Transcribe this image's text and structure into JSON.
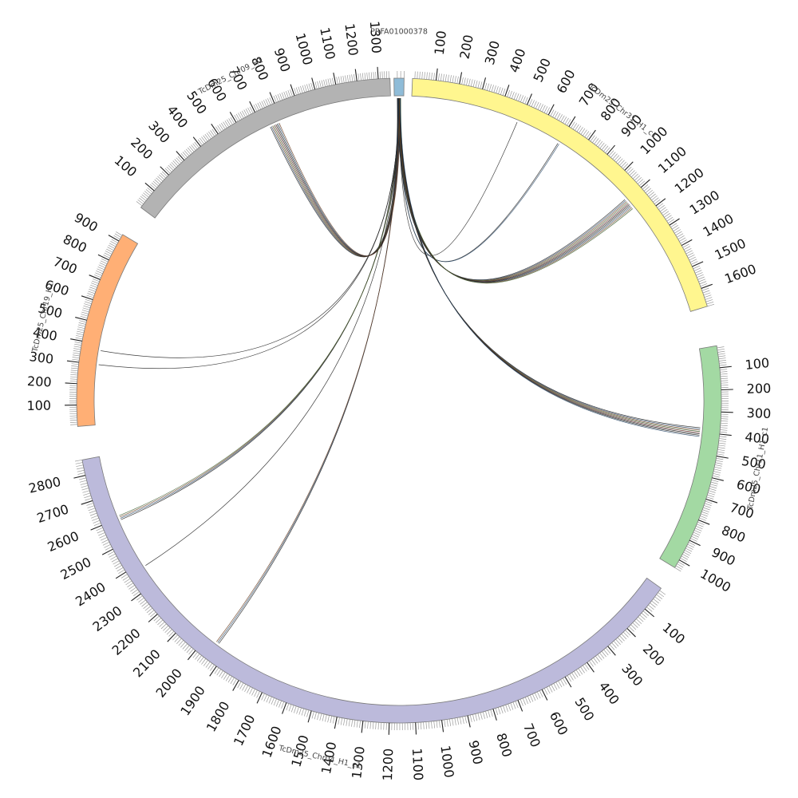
{
  "diagram": {
    "type": "circos",
    "segments": [
      {
        "id": "prfa",
        "name": "PRFA01000378",
        "color": "#8fbcd8",
        "length": 30,
        "tick_values": []
      },
      {
        "id": "chr31",
        "name": "TcDm25_Chr31_H1_c1",
        "color": "#fff68f",
        "length": 1680,
        "tick_values": [
          100,
          200,
          300,
          400,
          500,
          600,
          700,
          800,
          900,
          1000,
          1100,
          1200,
          1300,
          1400,
          1500,
          1600
        ]
      },
      {
        "id": "chr11",
        "name": "TcDm25_Chr11_H1_c1",
        "color": "#a3d9a3",
        "length": 1040,
        "tick_values": [
          100,
          200,
          300,
          400,
          500,
          600,
          700,
          800,
          900,
          1000
        ]
      },
      {
        "id": "chr04",
        "name": "TcDm25_Chr04_H1_c1",
        "color": "#bcbadb",
        "length": 2860,
        "tick_values": [
          100,
          200,
          300,
          400,
          500,
          600,
          700,
          800,
          900,
          1000,
          1100,
          1200,
          1300,
          1400,
          1500,
          1600,
          1700,
          1800,
          1900,
          2000,
          2100,
          2200,
          2300,
          2400,
          2500,
          2600,
          2700,
          2800
        ]
      },
      {
        "id": "chr19",
        "name": "TcDm25_Chr19_H1",
        "color": "#ffaf75",
        "length": 935,
        "tick_values": [
          100,
          200,
          300,
          400,
          500,
          600,
          700,
          800,
          900
        ]
      },
      {
        "id": "chr09",
        "name": "TcDm25_Chr09_H1",
        "color": "#b3b3b3",
        "length": 1355,
        "tick_values": [
          100,
          200,
          300,
          400,
          500,
          600,
          700,
          800,
          900,
          1000,
          1100,
          1200,
          1300
        ]
      }
    ],
    "links": [
      {
        "target": "chr09",
        "pos": 760,
        "count": 9
      },
      {
        "target": "chr31",
        "pos": 490,
        "count": 1
      },
      {
        "target": "chr31",
        "pos": 700,
        "count": 2
      },
      {
        "target": "chr31",
        "pos": 1120,
        "count": 10
      },
      {
        "target": "chr11",
        "pos": 400,
        "count": 8
      },
      {
        "target": "chr19",
        "pos": 370,
        "count": 1
      },
      {
        "target": "chr19",
        "pos": 300,
        "count": 1
      },
      {
        "target": "chr04",
        "pos": 2600,
        "count": 4
      },
      {
        "target": "chr04",
        "pos": 2380,
        "count": 1
      },
      {
        "target": "chr04",
        "pos": 1950,
        "count": 3
      }
    ]
  }
}
